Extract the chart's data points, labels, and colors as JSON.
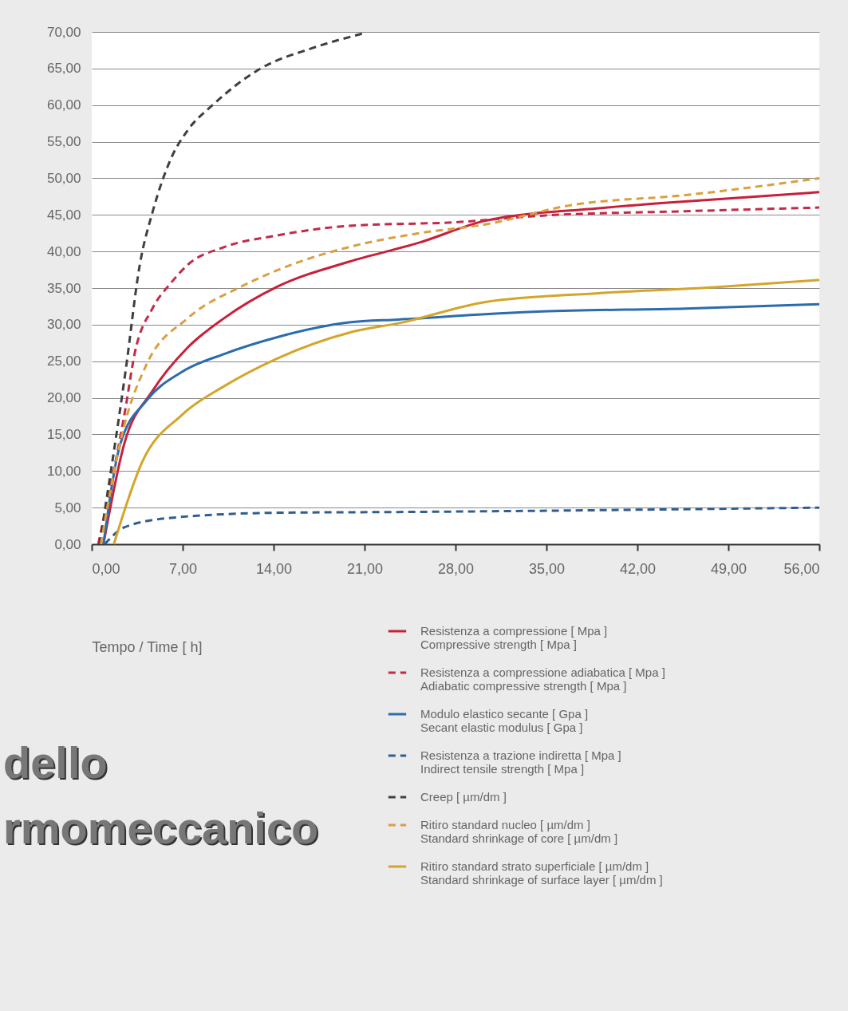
{
  "chart_data": {
    "type": "line",
    "xlabel": "Tempo / Time  [ h]",
    "xlim": [
      0,
      56
    ],
    "xticks": [
      {
        "value": 0,
        "label": "0,00"
      },
      {
        "value": 7,
        "label": "7,00"
      },
      {
        "value": 14,
        "label": "14,00"
      },
      {
        "value": 21,
        "label": "21,00"
      },
      {
        "value": 28,
        "label": "28,00"
      },
      {
        "value": 35,
        "label": "35,00"
      },
      {
        "value": 42,
        "label": "42,00"
      },
      {
        "value": 49,
        "label": "49,00"
      },
      {
        "value": 56,
        "label": "56,00"
      }
    ],
    "ylim": [
      0,
      70
    ],
    "yticks": [
      {
        "value": 0,
        "label": "0,00"
      },
      {
        "value": 5,
        "label": "5,00"
      },
      {
        "value": 10,
        "label": "10,00"
      },
      {
        "value": 15,
        "label": "15,00"
      },
      {
        "value": 20,
        "label": "20,00"
      },
      {
        "value": 25,
        "label": "25,00"
      },
      {
        "value": 30,
        "label": "30,00"
      },
      {
        "value": 35,
        "label": "35,00"
      },
      {
        "value": 40,
        "label": "40,00"
      },
      {
        "value": 45,
        "label": "45,00"
      },
      {
        "value": 50,
        "label": "50,00"
      },
      {
        "value": 55,
        "label": "55,00"
      },
      {
        "value": 60,
        "label": "60,00"
      },
      {
        "value": 65,
        "label": "65,00"
      },
      {
        "value": 70,
        "label": "70,00"
      }
    ],
    "grid": "y",
    "legend": "bottom",
    "marker": "none",
    "annotations": [
      "dello",
      "rmomeccanico"
    ],
    "series": [
      {
        "name": "Resistenza  a compressione  [ Mpa ]\nCompressive  strength  [ Mpa ]",
        "color": "#c8203a",
        "line_style": "solid",
        "x": [
          0.9,
          2.5,
          4.7,
          7.4,
          10.2,
          14.3,
          19.8,
          25.2,
          30.3,
          39,
          47.9,
          56
        ],
        "values": [
          0,
          13.7,
          21,
          26.9,
          30.9,
          35.2,
          38.6,
          41.2,
          44.2,
          45.9,
          47.1,
          48.1
        ]
      },
      {
        "name": "Resistenza  a compressione  adiabatica  [ Mpa ]\nAdiabatic  compressive  strength  [ Mpa ]",
        "color": "#c42a48",
        "line_style": "dashed",
        "x": [
          0.5,
          2.6,
          3.3,
          4.7,
          6.1,
          7.4,
          10.2,
          14.3,
          19.8,
          28,
          34.7,
          45.7,
          56
        ],
        "values": [
          0,
          18.6,
          26,
          32.3,
          35.7,
          38.2,
          40.6,
          42.2,
          43.5,
          44,
          44.9,
          45.5,
          46
        ]
      },
      {
        "name": "Modulo elastico  secante  [ Gpa  ]\nSecant elastic modulus [ Gpa  ]",
        "color": "#2c6cae",
        "line_style": "solid",
        "x": [
          0.9,
          2.2,
          4.2,
          6.9,
          10.2,
          14.3,
          19.8,
          23.6,
          34.7,
          45.7,
          56
        ],
        "values": [
          0,
          13.7,
          19.6,
          23.5,
          26,
          28.3,
          30.3,
          30.7,
          31.8,
          32.2,
          32.8
        ]
      },
      {
        "name": "Resistenza  a trazione  indiretta [ Mpa ]\nIndirect  tensile  strength  [ Mpa ]",
        "color": "#2f5f90",
        "line_style": "dashed",
        "x": [
          1,
          2.5,
          6.1,
          14.3,
          23.6,
          56
        ],
        "values": [
          0,
          2.3,
          3.6,
          4.3,
          4.4,
          5
        ]
      },
      {
        "name": "Creep  [ µm/dm ]",
        "color": "#404040",
        "line_style": "dashed",
        "x": [
          0.6,
          2.6,
          3.7,
          4.7,
          6.1,
          7.4,
          9.3,
          12.9,
          17,
          20.9
        ],
        "values": [
          0,
          23.6,
          38.2,
          45.5,
          52.7,
          56.6,
          60,
          64.9,
          67.8,
          69.8
        ]
      },
      {
        "name": "Ritiro  standard  nucleo  [ µm/dm ]\nStandard  shrinkage  of core  [ µm/dm ]",
        "color": "#d9a040",
        "line_style": "dashed",
        "x": [
          0.7,
          2.5,
          4.2,
          7.4,
          11.5,
          15.7,
          19.8,
          25.2,
          30.3,
          36.8,
          45.7,
          56
        ],
        "values": [
          0,
          16.2,
          24.5,
          30.9,
          35.2,
          38.4,
          40.6,
          42.5,
          43.7,
          46.3,
          47.7,
          50
        ]
      },
      {
        "name": "Ritiro  standard  strato superficiale  [ µm/dm ]\nStandard  shrinkage  of surface  layer  [ µm/dm ]",
        "color": "#d4a52a",
        "line_style": "solid",
        "x": [
          1.7,
          3.9,
          6.9,
          10.2,
          14.3,
          19.8,
          23.9,
          30.3,
          39,
          47.9,
          56
        ],
        "values": [
          0,
          11.3,
          17.6,
          21.6,
          25.4,
          28.9,
          30.3,
          33.1,
          34.3,
          35.1,
          36.1
        ]
      }
    ]
  }
}
